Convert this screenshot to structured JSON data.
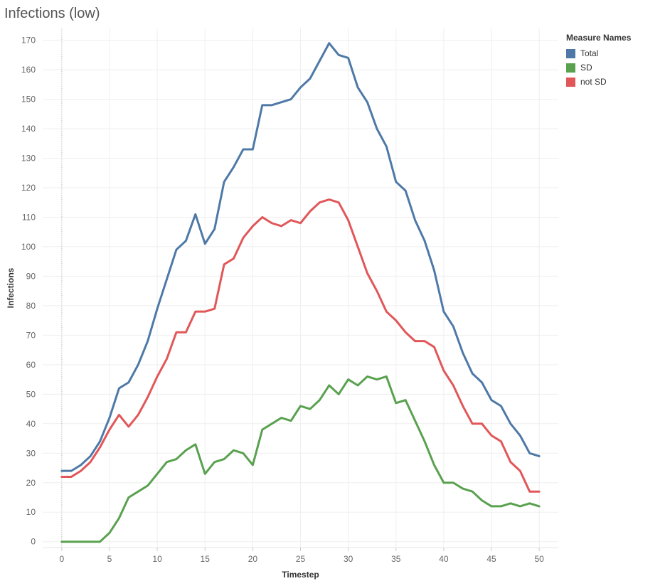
{
  "title": "Infections (low)",
  "legend": {
    "title": "Measure Names",
    "items": [
      {
        "label": "Total",
        "color": "#4e79a7"
      },
      {
        "label": "SD",
        "color": "#59a14f"
      },
      {
        "label": "not SD",
        "color": "#e15759"
      }
    ]
  },
  "chart_data": {
    "type": "line",
    "title": "Infections (low)",
    "xlabel": "Timestep",
    "ylabel": "Infections",
    "xlim": [
      -2,
      52
    ],
    "ylim": [
      -2,
      174
    ],
    "xticks": [
      0,
      5,
      10,
      15,
      20,
      25,
      30,
      35,
      40,
      45,
      50
    ],
    "yticks": [
      0,
      10,
      20,
      30,
      40,
      50,
      60,
      70,
      80,
      90,
      100,
      110,
      120,
      130,
      140,
      150,
      160,
      170
    ],
    "grid": true,
    "legend_position": "top-right",
    "x": [
      0,
      1,
      2,
      3,
      4,
      5,
      6,
      7,
      8,
      9,
      10,
      11,
      12,
      13,
      14,
      15,
      16,
      17,
      18,
      19,
      20,
      21,
      22,
      23,
      24,
      25,
      26,
      27,
      28,
      29,
      30,
      31,
      32,
      33,
      34,
      35,
      36,
      37,
      38,
      39,
      40,
      41,
      42,
      43,
      44,
      45,
      46,
      47,
      48,
      49,
      50
    ],
    "series": [
      {
        "name": "Total",
        "color": "#4e79a7",
        "values": [
          24,
          24,
          26,
          29,
          34,
          42,
          52,
          54,
          60,
          68,
          79,
          89,
          99,
          102,
          111,
          101,
          106,
          122,
          127,
          133,
          133,
          148,
          148,
          149,
          150,
          154,
          157,
          163,
          169,
          165,
          164,
          154,
          149,
          140,
          134,
          122,
          119,
          109,
          102,
          92,
          78,
          73,
          64,
          57,
          54,
          48,
          46,
          40,
          36,
          30,
          29
        ]
      },
      {
        "name": "SD",
        "color": "#59a14f",
        "values": [
          0,
          0,
          0,
          0,
          0,
          3,
          8,
          15,
          17,
          19,
          23,
          27,
          28,
          31,
          33,
          23,
          27,
          28,
          31,
          30,
          26,
          38,
          40,
          42,
          41,
          46,
          45,
          48,
          53,
          50,
          55,
          53,
          56,
          55,
          56,
          47,
          48,
          41,
          34,
          26,
          20,
          20,
          18,
          17,
          14,
          12,
          12,
          13,
          12,
          13,
          12
        ]
      },
      {
        "name": "not SD",
        "color": "#e15759",
        "values": [
          22,
          22,
          24,
          27,
          32,
          38,
          43,
          39,
          43,
          49,
          56,
          62,
          71,
          71,
          78,
          78,
          79,
          94,
          96,
          103,
          107,
          110,
          108,
          107,
          109,
          108,
          112,
          115,
          116,
          115,
          109,
          100,
          91,
          85,
          78,
          75,
          71,
          68,
          68,
          66,
          58,
          53,
          46,
          40,
          40,
          36,
          34,
          27,
          24,
          17,
          17
        ]
      }
    ]
  }
}
